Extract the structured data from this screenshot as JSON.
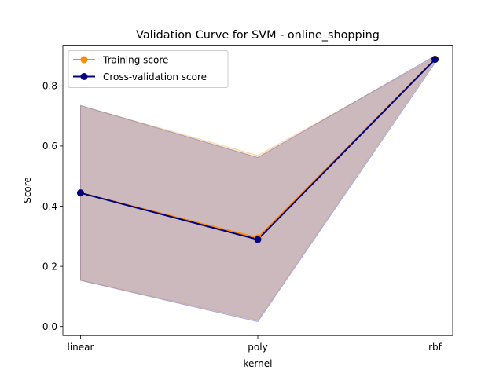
{
  "chart_data": {
    "type": "line",
    "title": "Validation Curve for SVM - online_shopping",
    "xlabel": "kernel",
    "ylabel": "Score",
    "categories": [
      "linear",
      "poly",
      "rbf"
    ],
    "ylim": [
      -0.03,
      0.935
    ],
    "yticks": [
      "0.0",
      "0.2",
      "0.4",
      "0.6",
      "0.8"
    ],
    "yticks_values": [
      0.0,
      0.2,
      0.4,
      0.6,
      0.8
    ],
    "grid": false,
    "legend_position": "upper-left",
    "series": [
      {
        "name": "Training score",
        "color": "#ff8c00",
        "values": [
          0.444,
          0.295,
          0.889
        ],
        "band_lower": [
          0.154,
          0.021,
          0.884
        ],
        "band_upper": [
          0.734,
          0.569,
          0.894
        ]
      },
      {
        "name": "Cross-validation score",
        "color": "#000080",
        "values": [
          0.444,
          0.289,
          0.888
        ],
        "band_lower": [
          0.153,
          0.016,
          0.876
        ],
        "band_upper": [
          0.735,
          0.562,
          0.9
        ]
      }
    ]
  }
}
